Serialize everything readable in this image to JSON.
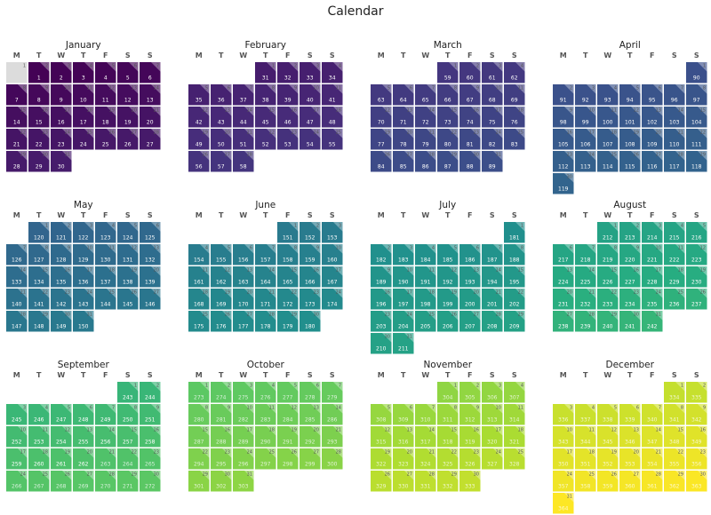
{
  "chart_data": {
    "type": "heatmap",
    "title": "Calendar",
    "weekday_labels": [
      "M",
      "T",
      "W",
      "T",
      "F",
      "S",
      "S"
    ],
    "first_weekday_of_year": "Monday",
    "colormap": "viridis",
    "months": [
      {
        "name": "January",
        "days": 31,
        "values": [
          null,
          1,
          2,
          3,
          4,
          5,
          6,
          7,
          8,
          9,
          10,
          11,
          12,
          13,
          14,
          15,
          16,
          17,
          18,
          19,
          20,
          21,
          22,
          23,
          24,
          25,
          26,
          27,
          28,
          29,
          30
        ]
      },
      {
        "name": "February",
        "days": 28,
        "values": [
          31,
          32,
          33,
          34,
          35,
          36,
          37,
          38,
          39,
          40,
          41,
          42,
          43,
          44,
          45,
          46,
          47,
          48,
          49,
          50,
          51,
          52,
          53,
          54,
          55,
          56,
          57,
          58
        ]
      },
      {
        "name": "March",
        "days": 31,
        "values": [
          59,
          60,
          61,
          62,
          63,
          64,
          65,
          66,
          67,
          68,
          69,
          70,
          71,
          72,
          73,
          74,
          75,
          76,
          77,
          78,
          79,
          80,
          81,
          82,
          83,
          84,
          85,
          86,
          87,
          88,
          89
        ]
      },
      {
        "name": "April",
        "days": 30,
        "values": [
          90,
          91,
          92,
          93,
          94,
          95,
          96,
          97,
          98,
          99,
          100,
          101,
          102,
          103,
          104,
          105,
          106,
          107,
          108,
          109,
          110,
          111,
          112,
          113,
          114,
          115,
          116,
          117,
          118,
          119
        ]
      },
      {
        "name": "May",
        "days": 31,
        "values": [
          120,
          121,
          122,
          123,
          124,
          125,
          126,
          127,
          128,
          129,
          130,
          131,
          132,
          133,
          134,
          135,
          136,
          137,
          138,
          139,
          140,
          141,
          142,
          143,
          144,
          145,
          146,
          147,
          148,
          149,
          150
        ]
      },
      {
        "name": "June",
        "days": 30,
        "values": [
          151,
          152,
          153,
          154,
          155,
          156,
          157,
          158,
          159,
          160,
          161,
          162,
          163,
          164,
          165,
          166,
          167,
          168,
          169,
          170,
          171,
          172,
          173,
          174,
          175,
          176,
          177,
          178,
          179,
          180
        ]
      },
      {
        "name": "July",
        "days": 31,
        "values": [
          181,
          182,
          183,
          184,
          185,
          186,
          187,
          188,
          189,
          190,
          191,
          192,
          193,
          194,
          195,
          196,
          197,
          198,
          199,
          200,
          201,
          202,
          203,
          204,
          205,
          206,
          207,
          208,
          209,
          210,
          211
        ]
      },
      {
        "name": "August",
        "days": 31,
        "values": [
          212,
          213,
          214,
          215,
          216,
          217,
          218,
          219,
          220,
          221,
          222,
          223,
          224,
          225,
          226,
          227,
          228,
          229,
          230,
          231,
          232,
          233,
          234,
          235,
          236,
          237,
          238,
          239,
          240,
          241,
          242
        ]
      },
      {
        "name": "September",
        "days": 30,
        "values": [
          243,
          244,
          245,
          246,
          247,
          248,
          249,
          250,
          251,
          252,
          253,
          254,
          255,
          256,
          257,
          258,
          259,
          260,
          261,
          262,
          263,
          264,
          265,
          266,
          267,
          268,
          269,
          270,
          271,
          272
        ]
      },
      {
        "name": "October",
        "days": 31,
        "values": [
          273,
          274,
          275,
          276,
          277,
          278,
          279,
          280,
          281,
          282,
          283,
          284,
          285,
          286,
          287,
          288,
          289,
          290,
          291,
          292,
          293,
          294,
          295,
          296,
          297,
          298,
          299,
          300,
          301,
          302,
          303
        ]
      },
      {
        "name": "November",
        "days": 30,
        "values": [
          304,
          305,
          306,
          307,
          308,
          309,
          310,
          311,
          312,
          313,
          314,
          315,
          316,
          317,
          318,
          319,
          320,
          321,
          322,
          323,
          324,
          325,
          326,
          327,
          328,
          329,
          330,
          331,
          332,
          333
        ]
      },
      {
        "name": "December",
        "days": 31,
        "values": [
          334,
          335,
          336,
          337,
          338,
          339,
          340,
          341,
          342,
          343,
          344,
          345,
          346,
          347,
          348,
          349,
          350,
          351,
          352,
          353,
          354,
          355,
          356,
          357,
          358,
          359,
          360,
          361,
          362,
          363,
          364
        ]
      }
    ]
  }
}
